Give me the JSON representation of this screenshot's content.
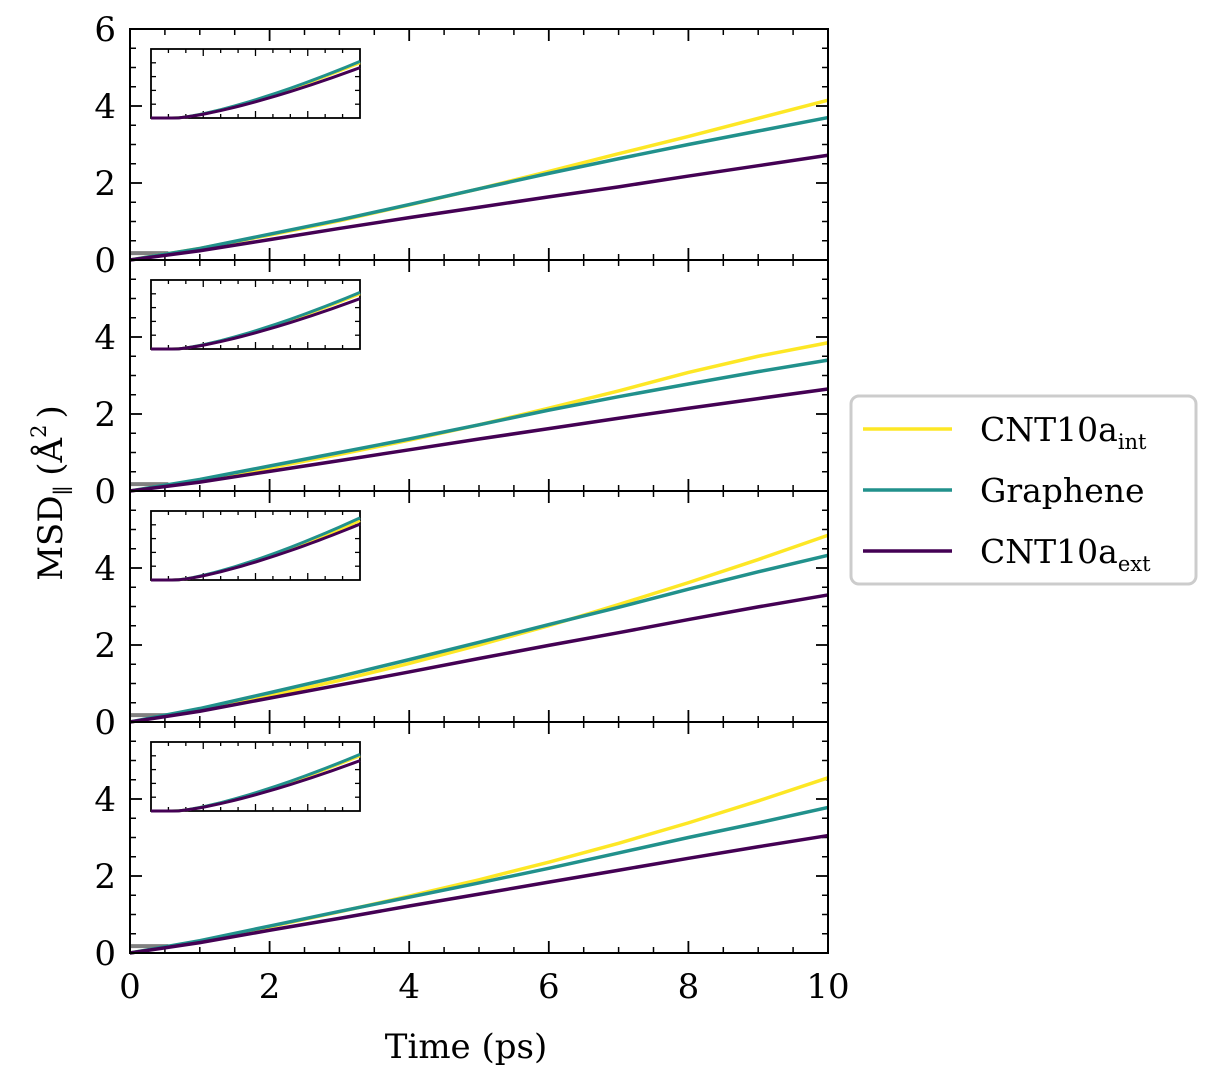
{
  "chart_data": {
    "type": "line",
    "xlabel": "Time (ps)",
    "ylabel": "MSD",
    "ylabel_subscript": "∥",
    "ylabel_unit_main": "(Å",
    "ylabel_unit_sup": "2",
    "ylabel_unit_end": ")",
    "xlim": [
      0,
      10
    ],
    "ylim": [
      0,
      6
    ],
    "x_ticks": [
      0,
      2,
      4,
      6,
      8,
      10
    ],
    "y_ticks_first_panel": [
      0,
      2,
      4,
      6
    ],
    "y_ticks_other_panels": [
      0,
      2,
      4
    ],
    "grid": false,
    "legend_placement": "right",
    "legend": [
      {
        "key": "int",
        "base": "CNT10a",
        "sub": "int",
        "color": "#fde725"
      },
      {
        "key": "gra",
        "base": "Graphene",
        "sub": "",
        "color": "#21918c"
      },
      {
        "key": "ext",
        "base": "CNT10a",
        "sub": "ext",
        "color": "#440154"
      }
    ],
    "reference_line_color": "#808080",
    "panels": [
      {
        "x": [
          0,
          1,
          2,
          3,
          4,
          5,
          6,
          7,
          8,
          9,
          10
        ],
        "series": [
          {
            "key": "int",
            "values": [
              0,
              0.3,
              0.65,
              1.02,
              1.43,
              1.85,
              2.3,
              2.76,
              3.21,
              3.68,
              4.15
            ]
          },
          {
            "key": "gra",
            "values": [
              0,
              0.3,
              0.67,
              1.04,
              1.44,
              1.85,
              2.25,
              2.63,
              3.0,
              3.35,
              3.7
            ]
          },
          {
            "key": "ext",
            "values": [
              0,
              0.24,
              0.53,
              0.82,
              1.1,
              1.37,
              1.64,
              1.9,
              2.18,
              2.45,
              2.72
            ]
          }
        ]
      },
      {
        "x": [
          0,
          1,
          2,
          3,
          4,
          5,
          6,
          7,
          8,
          9,
          10
        ],
        "series": [
          {
            "key": "int",
            "values": [
              0,
              0.28,
              0.6,
              0.95,
              1.32,
              1.72,
              2.15,
              2.6,
              3.08,
              3.5,
              3.85
            ]
          },
          {
            "key": "gra",
            "values": [
              0,
              0.3,
              0.65,
              1.0,
              1.35,
              1.72,
              2.1,
              2.45,
              2.78,
              3.1,
              3.4
            ]
          },
          {
            "key": "ext",
            "values": [
              0,
              0.23,
              0.51,
              0.79,
              1.07,
              1.35,
              1.62,
              1.89,
              2.15,
              2.4,
              2.65
            ]
          }
        ]
      },
      {
        "x": [
          0,
          1,
          2,
          3,
          4,
          5,
          6,
          7,
          8,
          9,
          10
        ],
        "series": [
          {
            "key": "int",
            "values": [
              0,
              0.3,
              0.68,
              1.08,
              1.52,
              2.0,
              2.5,
              3.05,
              3.62,
              4.22,
              4.85
            ]
          },
          {
            "key": "gra",
            "values": [
              0,
              0.35,
              0.76,
              1.18,
              1.62,
              2.07,
              2.53,
              2.98,
              3.45,
              3.9,
              4.33
            ]
          },
          {
            "key": "ext",
            "values": [
              0,
              0.28,
              0.62,
              0.96,
              1.3,
              1.65,
              1.99,
              2.32,
              2.66,
              2.99,
              3.3
            ]
          }
        ]
      },
      {
        "x": [
          0,
          1,
          2,
          3,
          4,
          5,
          6,
          7,
          8,
          9,
          10
        ],
        "series": [
          {
            "key": "int",
            "values": [
              0,
              0.3,
              0.68,
              1.07,
              1.48,
              1.9,
              2.36,
              2.85,
              3.38,
              3.95,
              4.55
            ]
          },
          {
            "key": "gra",
            "values": [
              0,
              0.32,
              0.7,
              1.08,
              1.45,
              1.82,
              2.2,
              2.6,
              3.0,
              3.38,
              3.78
            ]
          },
          {
            "key": "ext",
            "values": [
              0,
              0.27,
              0.59,
              0.9,
              1.22,
              1.53,
              1.84,
              2.15,
              2.46,
              2.76,
              3.05
            ]
          }
        ]
      }
    ]
  }
}
